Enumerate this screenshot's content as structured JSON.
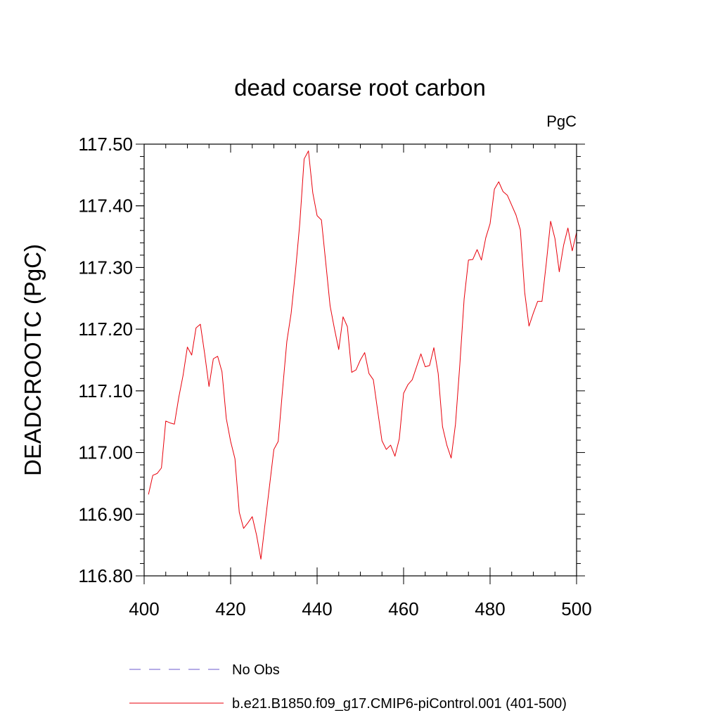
{
  "chart_data": {
    "type": "line",
    "title": "dead coarse root carbon",
    "units_label": "PgC",
    "ylabel": "DEADCROOTC  (PgC)",
    "xlabel": "",
    "xlim": [
      400,
      500
    ],
    "ylim": [
      116.8,
      117.5
    ],
    "x_ticks": [
      400,
      420,
      440,
      460,
      480,
      500
    ],
    "x_tick_labels": [
      "400",
      "420",
      "440",
      "460",
      "480",
      "500"
    ],
    "y_ticks": [
      116.8,
      116.9,
      117.0,
      117.1,
      117.2,
      117.3,
      117.4,
      117.5
    ],
    "y_tick_labels": [
      "116.80",
      "116.90",
      "117.00",
      "117.10",
      "117.20",
      "117.30",
      "117.40",
      "117.50"
    ],
    "grid": false,
    "legend_position": "bottom",
    "series": [
      {
        "name": "b.e21.B1850.f09_g17.CMIP6-piControl.001 (401-500)",
        "color": "#e8000b",
        "style": "solid",
        "x": [
          401,
          402,
          403,
          404,
          405,
          406,
          407,
          408,
          409,
          410,
          411,
          412,
          413,
          414,
          415,
          416,
          417,
          418,
          419,
          420,
          421,
          422,
          423,
          424,
          425,
          426,
          427,
          428,
          429,
          430,
          431,
          432,
          433,
          434,
          435,
          436,
          437,
          438,
          439,
          440,
          441,
          442,
          443,
          444,
          445,
          446,
          447,
          448,
          449,
          450,
          451,
          452,
          453,
          454,
          455,
          456,
          457,
          458,
          459,
          460,
          461,
          462,
          463,
          464,
          465,
          466,
          467,
          468,
          469,
          470,
          471,
          472,
          473,
          474,
          475,
          476,
          477,
          478,
          479,
          480,
          481,
          482,
          483,
          484,
          485,
          486,
          487,
          488,
          489,
          490,
          491,
          492,
          493,
          494,
          495,
          496,
          497,
          498,
          499,
          500
        ],
        "y": [
          116.932,
          116.963,
          116.966,
          116.975,
          117.051,
          117.048,
          117.046,
          117.089,
          117.125,
          117.171,
          117.158,
          117.202,
          117.208,
          117.16,
          117.107,
          117.152,
          117.156,
          117.131,
          117.055,
          117.018,
          116.99,
          116.903,
          116.877,
          116.886,
          116.896,
          116.866,
          116.827,
          116.887,
          116.946,
          117.005,
          117.018,
          117.101,
          117.18,
          117.226,
          117.294,
          117.372,
          117.476,
          117.489,
          117.421,
          117.384,
          117.377,
          117.308,
          117.238,
          117.201,
          117.167,
          117.22,
          117.204,
          117.13,
          117.134,
          117.15,
          117.162,
          117.128,
          117.118,
          117.068,
          117.019,
          117.005,
          117.012,
          116.994,
          117.022,
          117.096,
          117.11,
          117.118,
          117.139,
          117.16,
          117.139,
          117.141,
          117.17,
          117.128,
          117.042,
          117.012,
          116.991,
          117.046,
          117.142,
          117.249,
          117.312,
          117.313,
          117.329,
          117.312,
          117.348,
          117.371,
          117.427,
          117.439,
          117.423,
          117.417,
          117.401,
          117.385,
          117.361,
          117.26,
          117.205,
          117.226,
          117.245,
          117.245,
          117.307,
          117.375,
          117.347,
          117.293,
          117.336,
          117.364,
          117.327,
          117.357
        ]
      },
      {
        "name": "No Obs",
        "color": "#6a5acd",
        "style": "dashed",
        "x": [],
        "y": []
      }
    ]
  }
}
